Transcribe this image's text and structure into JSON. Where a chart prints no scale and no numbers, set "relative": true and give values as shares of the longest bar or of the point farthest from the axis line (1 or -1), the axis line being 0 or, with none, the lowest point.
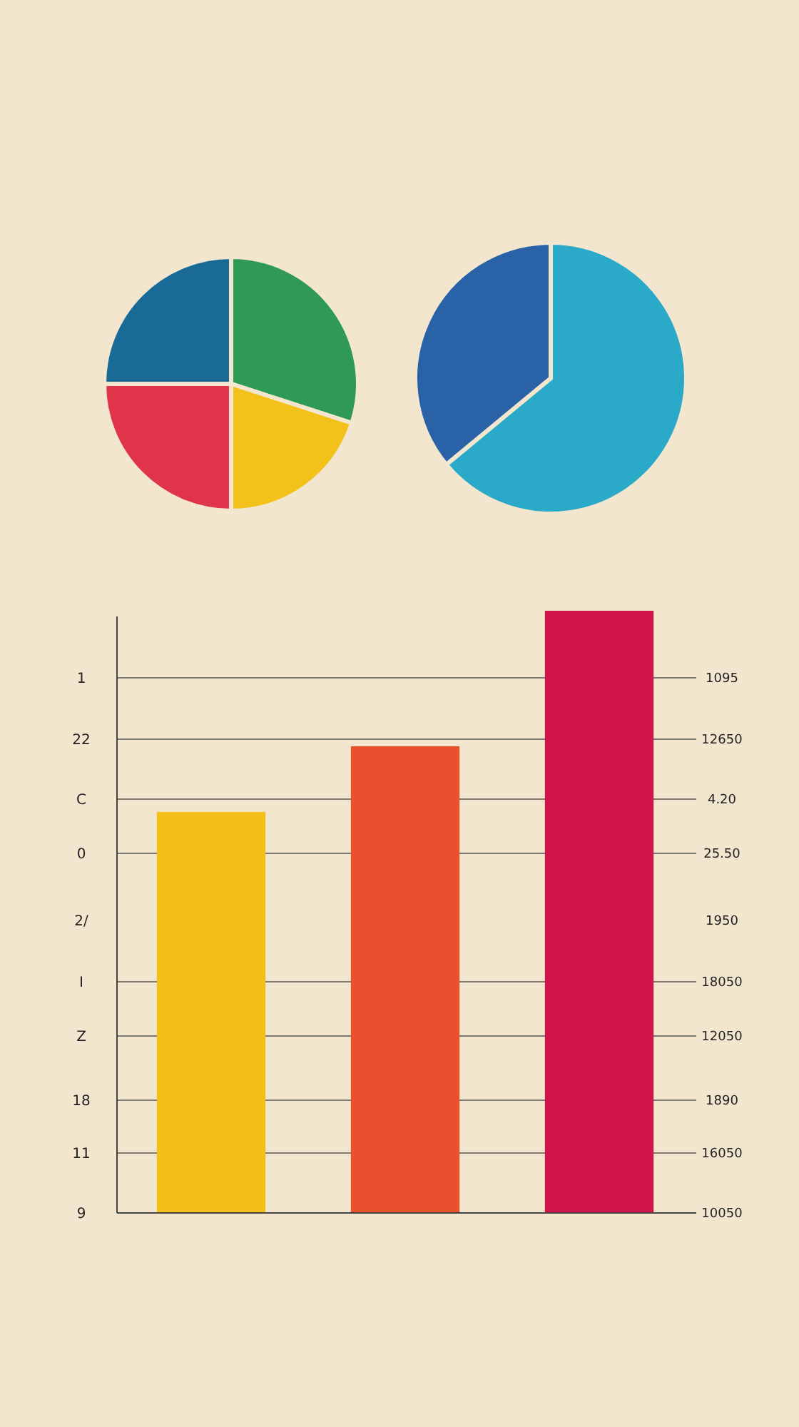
{
  "chart_data": [
    {
      "type": "pie",
      "categories": [
        null,
        null,
        null,
        null
      ],
      "values": [
        30,
        20,
        25,
        25
      ],
      "colors": [
        "#2e9a55",
        "#f2c21a",
        "#e0344a",
        "#1a6a98"
      ]
    },
    {
      "type": "pie",
      "categories": [
        null,
        null
      ],
      "values": [
        64,
        36
      ],
      "colors": [
        "#2aa9c8",
        "#2a62a8"
      ]
    },
    {
      "type": "bar",
      "relative": true,
      "grid": true,
      "categories": [
        null,
        null,
        null
      ],
      "values": [
        0.666,
        0.775,
        1
      ],
      "colors": [
        "#f2c018",
        "#e8502e",
        "#d0134a"
      ],
      "annotations": [
        "1",
        "22",
        "C",
        "0",
        "2/",
        "I",
        "Z",
        "18",
        "11",
        "9",
        "1095",
        "12650",
        "4.20",
        "25.50",
        "1950",
        "18050",
        "12050",
        "1890",
        "16050",
        "10050"
      ]
    }
  ]
}
